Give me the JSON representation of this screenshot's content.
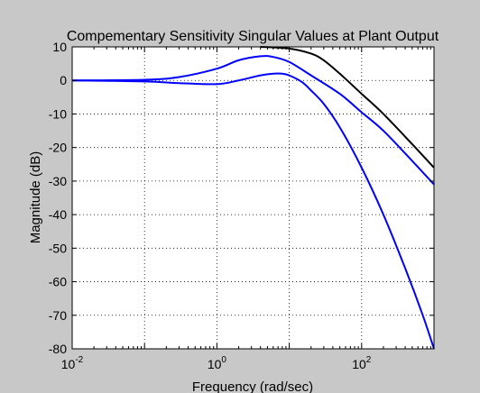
{
  "figure": {
    "background": "#c8c8c8",
    "axes_background": "#ffffff"
  },
  "chart_data": {
    "type": "line",
    "title": "Compementary Sensitivity Singular Values at Plant Output",
    "xlabel": "Frequency (rad/sec)",
    "ylabel": "Magnitude (dB)",
    "xscale": "log",
    "xlim": [
      0.01,
      1000
    ],
    "ylim": [
      -80,
      10
    ],
    "grid": true,
    "grid_style": "dotted",
    "legend": "none",
    "xticks": [
      {
        "value": 0.01,
        "base": "10",
        "exp": "-2"
      },
      {
        "value": 1,
        "base": "10",
        "exp": "0"
      },
      {
        "value": 100,
        "base": "10",
        "exp": "2"
      }
    ],
    "yticks": [
      10,
      0,
      -10,
      -20,
      -30,
      -40,
      -50,
      -60,
      -70,
      -80
    ],
    "series": [
      {
        "color": "#000000",
        "x": [
          4,
          10,
          20,
          30,
          50,
          100,
          200,
          500,
          1000
        ],
        "y": [
          10,
          9.5,
          8,
          6,
          2,
          -4,
          -10,
          -19,
          -26
        ]
      },
      {
        "color": "#0000ff",
        "x": [
          0.01,
          0.1,
          0.3,
          1,
          2,
          4,
          6,
          10,
          20,
          50,
          100,
          200,
          500,
          1000
        ],
        "y": [
          0,
          0.2,
          1,
          3.5,
          6,
          7.2,
          7,
          5.5,
          1.5,
          -4,
          -9.5,
          -15,
          -24,
          -31
        ]
      },
      {
        "color": "#0000ff",
        "x": [
          0.01,
          0.1,
          0.3,
          1,
          2,
          4,
          6,
          8,
          10,
          15,
          20,
          30,
          50,
          100,
          200,
          400,
          700,
          1000
        ],
        "y": [
          0,
          -0.3,
          -0.8,
          -1.1,
          0,
          1.5,
          2,
          2,
          1.5,
          -0.5,
          -3,
          -7,
          -14,
          -26,
          -40,
          -56,
          -70,
          -80
        ]
      }
    ]
  }
}
